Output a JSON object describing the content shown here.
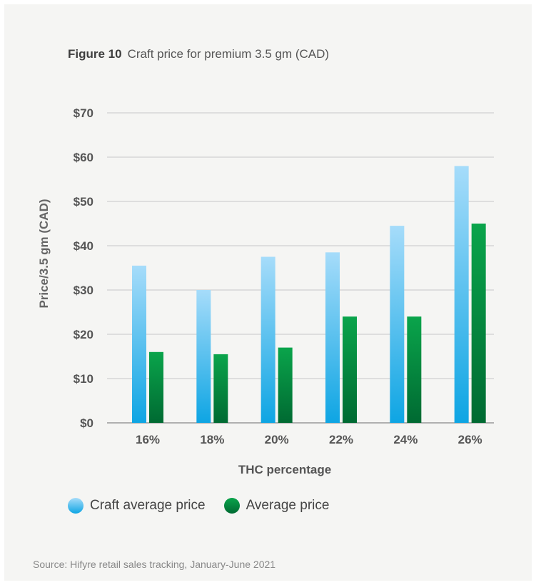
{
  "figure": {
    "number": "Figure 10",
    "caption": "Craft price for premium 3.5 gm (CAD)"
  },
  "chart_data": {
    "type": "bar",
    "title": "Figure 10  Craft price for premium 3.5 gm (CAD)",
    "xlabel": "THC percentage",
    "ylabel": "Price/3.5 gm (CAD)",
    "categories": [
      "16%",
      "18%",
      "20%",
      "22%",
      "24%",
      "26%"
    ],
    "series": [
      {
        "name": "Craft average price",
        "values": [
          35.5,
          30,
          37.5,
          38.5,
          44.5,
          58
        ],
        "color_top": "#a6dcfa",
        "color_bottom": "#0ea5e3"
      },
      {
        "name": "Average price",
        "values": [
          16,
          15.5,
          17,
          24,
          24,
          45
        ],
        "color_top": "#0aa44b",
        "color_bottom": "#006a32"
      }
    ],
    "ylim": [
      0,
      70
    ],
    "yticks": [
      0,
      10,
      20,
      30,
      40,
      50,
      60,
      70
    ],
    "ytick_labels": [
      "$0",
      "$10",
      "$20",
      "$30",
      "$40",
      "$50",
      "$60",
      "$70"
    ],
    "grid": true,
    "legend_position": "bottom-left"
  },
  "source": "Source: Hifyre retail sales tracking, January-June 2021"
}
